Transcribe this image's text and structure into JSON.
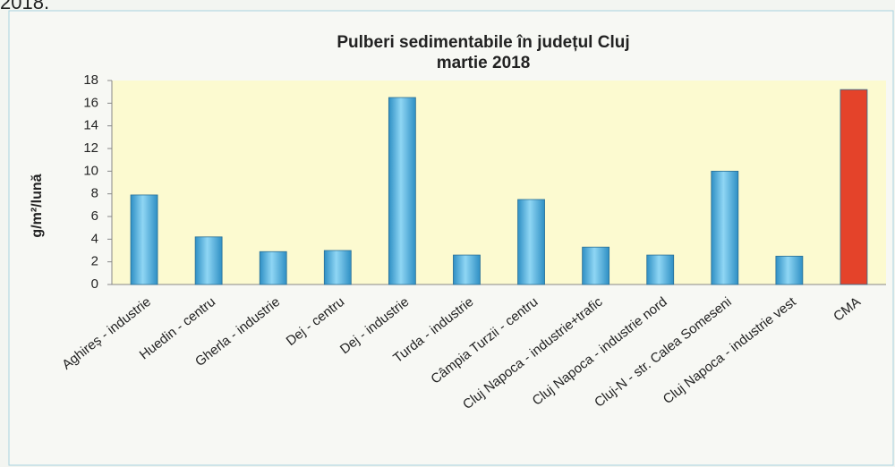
{
  "page_fragment": "2018.",
  "chart_data": {
    "type": "bar",
    "title": "Pulberi sedimentabile în județul Cluj",
    "subtitle": "martie 2018",
    "y_label": "g/m²/lună",
    "categories": [
      "Aghireș - industrie",
      "Huedin - centru",
      "Gherla - industrie",
      "Dej - centru",
      "Dej - industrie",
      "Turda - industrie",
      "Câmpia Turzii - centru",
      "Cluj Napoca - industrie+trafic",
      "Cluj Napoca - industrie nord",
      "Cluj-N - str. Calea Someseni",
      "Cluj Napoca - industrie vest",
      "CMA"
    ],
    "values": [
      7.9,
      4.2,
      2.9,
      3.0,
      16.5,
      2.6,
      7.5,
      3.3,
      2.6,
      10.0,
      2.5,
      17.2
    ],
    "colors": [
      "#4db6e4",
      "#4db6e4",
      "#4db6e4",
      "#4db6e4",
      "#4db6e4",
      "#4db6e4",
      "#4db6e4",
      "#4db6e4",
      "#4db6e4",
      "#4db6e4",
      "#4db6e4",
      "#e4432a"
    ],
    "ylim": [
      0,
      18
    ],
    "yticks": [
      0,
      2,
      4,
      6,
      8,
      10,
      12,
      14,
      16,
      18
    ],
    "grid": false
  }
}
